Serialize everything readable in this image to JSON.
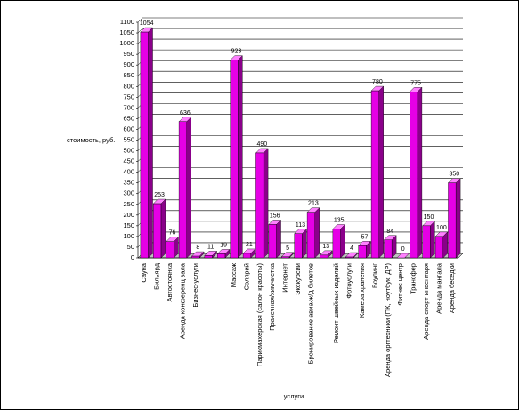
{
  "chart_data": {
    "type": "bar3d",
    "y_label": "стоимость, руб.",
    "x_label": "услуги",
    "categories": [
      "Сауна",
      "Бильярд",
      "Автостоянка",
      "Аренда конференц зала",
      "Бизнес-услуги",
      null,
      null,
      "Массаж",
      "Солярий",
      "Парикмахерская (салон красоты)",
      "Прачечная/химчистка",
      "Интернет",
      "Экскурсии",
      "Бронирование авиа-ж/д билетов",
      null,
      "Ремонт швейных изделий",
      "Фотоуслуги",
      "Камера хранения",
      "Боулинг",
      "Аренда оргтехники (ПК, ноутбук, ДР)",
      "Фитнес центр",
      "Трансфер",
      "Аренда спорт инвентаря",
      "Аренда мангала",
      "Аренда беседки"
    ],
    "values": [
      1054,
      253,
      76,
      636,
      8,
      11,
      19,
      923,
      21,
      490,
      156,
      5,
      113,
      213,
      13,
      135,
      4,
      57,
      780,
      84,
      0,
      775,
      150,
      100,
      350
    ],
    "color": "#e600e6",
    "ylim": [
      0,
      1100
    ],
    "yticks": [
      0,
      50,
      100,
      150,
      200,
      250,
      300,
      350,
      400,
      450,
      500,
      550,
      600,
      650,
      700,
      750,
      800,
      850,
      900,
      950,
      1000,
      1050,
      1100
    ],
    "grid": true
  }
}
